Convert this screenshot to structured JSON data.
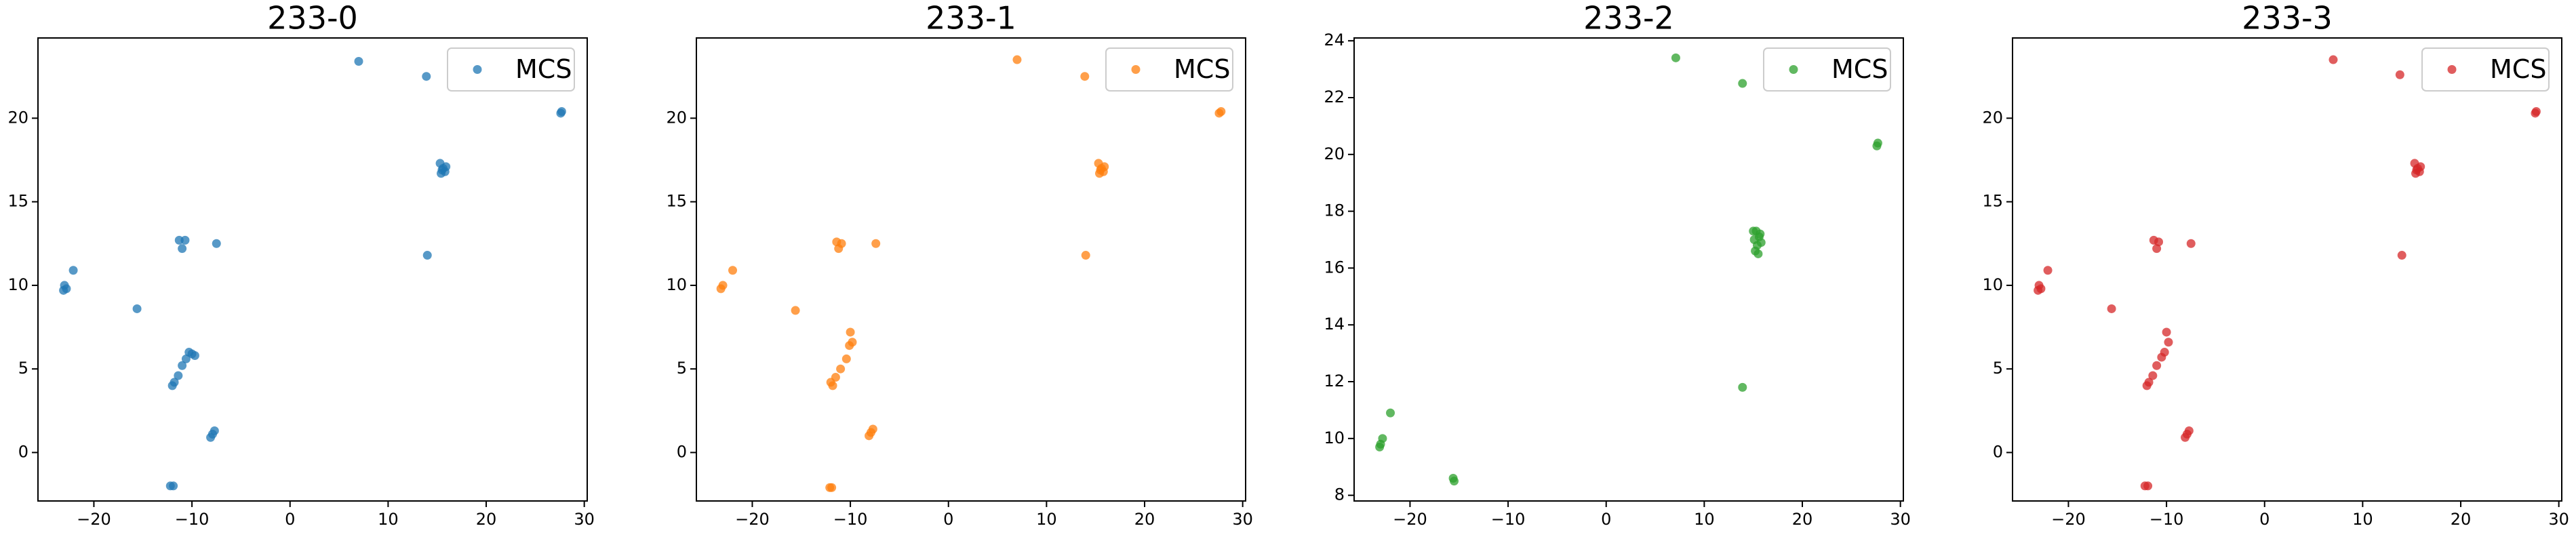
{
  "chart_data": [
    {
      "type": "scatter",
      "title": "233-0",
      "legend": "upper right",
      "series": [
        {
          "name": "MCS",
          "color": "#1f77b4",
          "x": [
            7.0,
            13.9,
            27.6,
            27.7,
            15.3,
            15.6,
            15.8,
            15.4,
            15.9,
            15.5,
            14.0,
            -22.1,
            -23.0,
            -22.8,
            -23.1,
            -15.6,
            -11.3,
            -10.7,
            -11.0,
            -7.5,
            -10.0,
            -9.7,
            -10.3,
            -10.6,
            -11.0,
            -11.4,
            -11.8,
            -12.0,
            -7.9,
            -7.7,
            -8.1,
            -11.9,
            -12.2
          ],
          "values": [
            23.4,
            22.5,
            20.3,
            20.4,
            17.3,
            17.0,
            16.8,
            16.7,
            17.1,
            16.9,
            11.8,
            10.9,
            10.0,
            9.8,
            9.7,
            8.6,
            12.7,
            12.7,
            12.2,
            12.5,
            5.9,
            5.8,
            6.0,
            5.6,
            5.2,
            4.6,
            4.2,
            4.0,
            1.1,
            1.3,
            0.9,
            -2.0,
            -2.0
          ]
        }
      ],
      "xlim": [
        -25.7,
        30.3
      ],
      "ylim": [
        -2.9,
        24.8
      ],
      "xticks": [
        {
          "value": -20,
          "label": "−20"
        },
        {
          "value": -10,
          "label": "−10"
        },
        0,
        10,
        20,
        30
      ],
      "yticks": [
        0,
        5,
        10,
        15,
        20
      ]
    },
    {
      "type": "scatter",
      "title": "233-1",
      "legend": "upper right",
      "series": [
        {
          "name": "MCS",
          "color": "#ff7f0e",
          "x": [
            7.0,
            13.9,
            27.6,
            27.8,
            15.3,
            15.6,
            15.8,
            15.4,
            15.9,
            15.5,
            14.0,
            -22.0,
            -23.2,
            -23.0,
            -15.6,
            -11.4,
            -10.9,
            -11.2,
            -7.4,
            -10.0,
            -9.8,
            -10.1,
            -10.4,
            -11.0,
            -11.5,
            -11.8,
            -12.0,
            -7.9,
            -8.1,
            -7.7,
            -11.9,
            -12.1
          ],
          "values": [
            23.5,
            22.5,
            20.3,
            20.4,
            17.3,
            17.0,
            16.8,
            16.7,
            17.1,
            16.9,
            11.8,
            10.9,
            9.8,
            10.0,
            8.5,
            12.6,
            12.5,
            12.2,
            12.5,
            7.2,
            6.6,
            6.4,
            5.6,
            5.0,
            4.5,
            4.0,
            4.2,
            1.2,
            1.0,
            1.4,
            -2.1,
            -2.1
          ]
        }
      ],
      "xlim": [
        -25.7,
        30.3
      ],
      "ylim": [
        -2.9,
        24.8
      ],
      "xticks": [
        {
          "value": -20,
          "label": "−20"
        },
        {
          "value": -10,
          "label": "−10"
        },
        0,
        10,
        20,
        30
      ],
      "yticks": [
        0,
        5,
        10,
        15,
        20
      ]
    },
    {
      "type": "scatter",
      "title": "233-2",
      "legend": "upper right",
      "series": [
        {
          "name": "MCS",
          "color": "#2ca02c",
          "x": [
            7.1,
            13.9,
            27.7,
            27.6,
            15.0,
            15.3,
            15.6,
            15.8,
            15.4,
            15.2,
            15.5,
            15.7,
            15.1,
            13.9,
            -22.0,
            -22.8,
            -23.0,
            -23.1,
            -15.6,
            -15.5
          ],
          "values": [
            23.4,
            22.5,
            20.4,
            20.3,
            17.3,
            17.3,
            17.1,
            16.9,
            16.8,
            16.6,
            16.5,
            17.2,
            17.0,
            11.8,
            10.9,
            10.0,
            9.8,
            9.7,
            8.6,
            8.5
          ]
        }
      ],
      "xlim": [
        -25.7,
        30.3
      ],
      "ylim": [
        7.8,
        24.1
      ],
      "xticks": [
        {
          "value": -20,
          "label": "−20"
        },
        {
          "value": -10,
          "label": "−10"
        },
        0,
        10,
        20,
        30
      ],
      "yticks": [
        8,
        10,
        12,
        14,
        16,
        18,
        20,
        22,
        24
      ]
    },
    {
      "type": "scatter",
      "title": "233-3",
      "legend": "upper right",
      "series": [
        {
          "name": "MCS",
          "color": "#d62728",
          "x": [
            7.0,
            13.8,
            27.6,
            27.7,
            15.3,
            15.6,
            15.8,
            15.4,
            15.9,
            15.5,
            14.0,
            -22.1,
            -23.0,
            -22.8,
            -23.1,
            -15.6,
            -11.3,
            -10.8,
            -11.0,
            -7.5,
            -10.0,
            -9.8,
            -10.2,
            -10.5,
            -11.0,
            -11.4,
            -11.8,
            -12.0,
            -7.9,
            -7.7,
            -8.1,
            -11.9,
            -12.2
          ],
          "values": [
            23.5,
            22.6,
            20.3,
            20.4,
            17.3,
            17.0,
            16.8,
            16.7,
            17.1,
            16.9,
            11.8,
            10.9,
            10.0,
            9.8,
            9.7,
            8.6,
            12.7,
            12.6,
            12.2,
            12.5,
            7.2,
            6.6,
            6.0,
            5.7,
            5.2,
            4.6,
            4.2,
            4.0,
            1.1,
            1.3,
            0.9,
            -2.0,
            -2.0
          ]
        }
      ],
      "xlim": [
        -25.7,
        30.3
      ],
      "ylim": [
        -2.9,
        24.8
      ],
      "xticks": [
        {
          "value": -20,
          "label": "−20"
        },
        {
          "value": -10,
          "label": "−10"
        },
        0,
        10,
        20,
        30
      ],
      "yticks": [
        0,
        5,
        10,
        15,
        20
      ]
    }
  ]
}
